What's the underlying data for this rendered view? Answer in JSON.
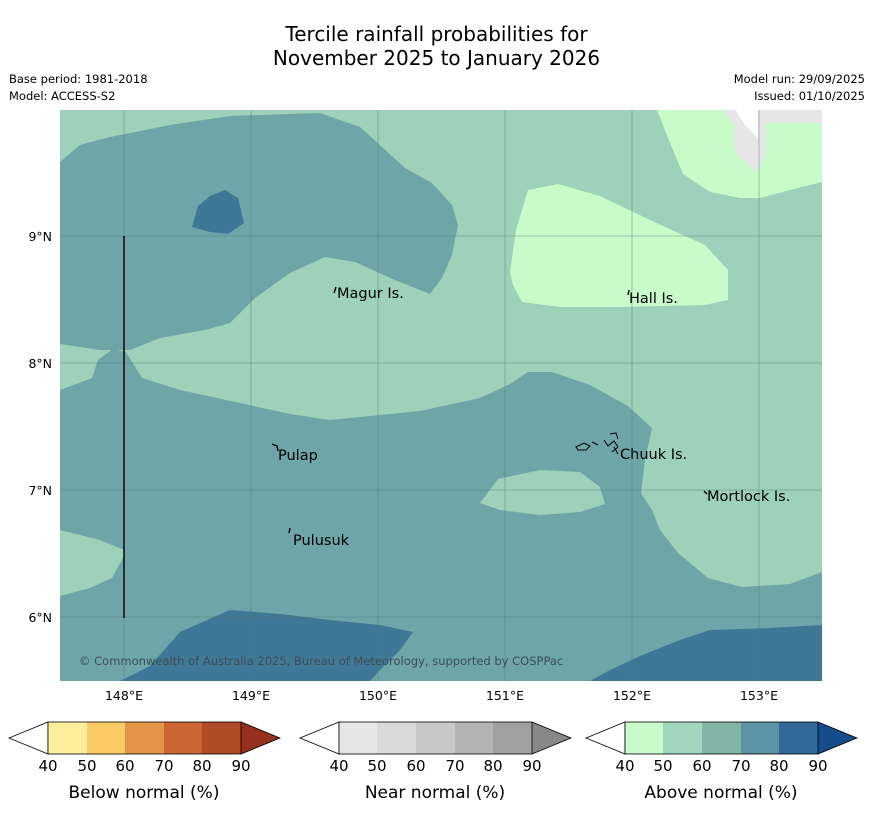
{
  "title": {
    "line1": "Tercile rainfall probabilities for",
    "line2": "November 2025 to January 2026"
  },
  "meta": {
    "base_period": "Base period: 1981-2018",
    "model": "Model: ACCESS-S2",
    "model_run": "Model run: 29/09/2025",
    "issued": "Issued: 01/10/2025"
  },
  "map": {
    "lat_labels": [
      "9°N",
      "8°N",
      "7°N",
      "6°N"
    ],
    "lon_labels": [
      "148°E",
      "149°E",
      "150°E",
      "151°E",
      "152°E",
      "153°E"
    ],
    "places": [
      "Magur Is.",
      "Hall Is.",
      "Pulap",
      "Chuuk Is.",
      "Mortlock Is.",
      "Pulusuk"
    ],
    "copyright": "© Commonwealth of Australia 2025, Bureau of Meteorology, supported by COSPPac",
    "colors": {
      "above_50": "#9dd1b9",
      "above_70": "#6ea5a8",
      "above_80": "#3f7896",
      "above_40": "#c9fac9",
      "near_90": "#e6e6e6"
    }
  },
  "legends": {
    "below": {
      "label": "Below normal (%)",
      "ticks": [
        "40",
        "50",
        "60",
        "70",
        "80",
        "90"
      ],
      "colors": [
        "#ffee9e",
        "#fdcb65",
        "#e29646",
        "#cc6434",
        "#b24a26",
        "#96301c"
      ]
    },
    "near": {
      "label": "Near normal (%)",
      "ticks": [
        "40",
        "50",
        "60",
        "70",
        "80",
        "90"
      ],
      "colors": [
        "#e6e6e6",
        "#d9d9d9",
        "#c8c8c8",
        "#b4b4b4",
        "#a0a0a0",
        "#878787"
      ]
    },
    "above": {
      "label": "Above normal (%)",
      "ticks": [
        "40",
        "50",
        "60",
        "70",
        "80",
        "90"
      ],
      "colors": [
        "#c9fac9",
        "#a1d8bd",
        "#82b5a6",
        "#5c94a5",
        "#33689a",
        "#154c8c"
      ]
    }
  }
}
